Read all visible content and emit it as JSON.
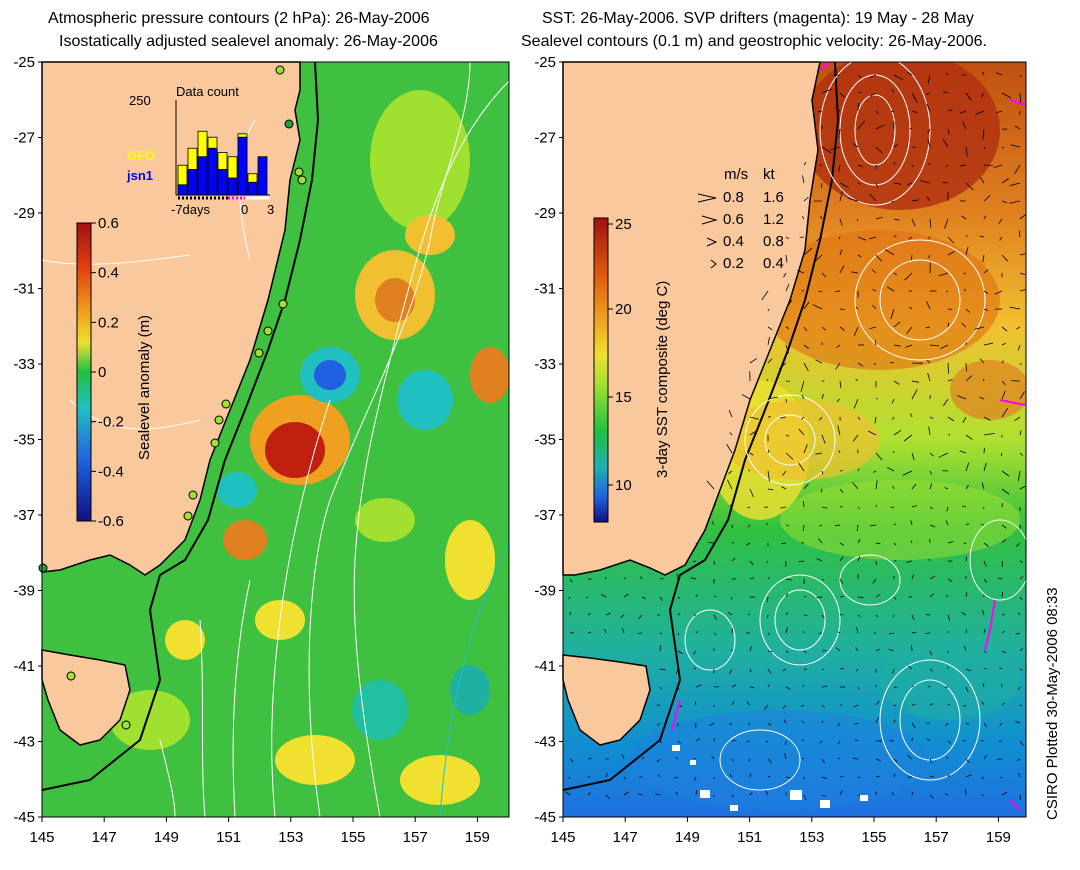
{
  "left_panel": {
    "title_line1": "Atmospheric pressure contours (2 hPa): 26-May-2006",
    "title_line2": "Isostatically adjusted sealevel anomaly: 26-May-2006",
    "colorbar": {
      "label": "Sealevel anomaly (m)",
      "ticks": [
        "0.6",
        "0.4",
        "0.2",
        "0",
        "-0.2",
        "-0.4",
        "-0.6"
      ],
      "colors": [
        "#a01010",
        "#e04010",
        "#f0a020",
        "#f0e030",
        "#a0e030",
        "#20c040",
        "#20c0c0",
        "#2060e0",
        "#101080"
      ]
    },
    "inset": {
      "title": "Data count",
      "ymax": "250",
      "legend_gfo": "GFO",
      "legend_jsn1": "jsn1",
      "xlabel_left": "-7days",
      "xlabel_mid": "0",
      "xlabel_right": "3",
      "gfo_color": "#ffff00",
      "jsn1_color": "#0000ff",
      "bars": [
        {
          "gfo": 0.35,
          "jsn1": 0.12
        },
        {
          "gfo": 0.55,
          "jsn1": 0.3
        },
        {
          "gfo": 0.75,
          "jsn1": 0.45
        },
        {
          "gfo": 0.68,
          "jsn1": 0.55
        },
        {
          "gfo": 0.5,
          "jsn1": 0.3
        },
        {
          "gfo": 0.45,
          "jsn1": 0.2
        },
        {
          "gfo": 0.72,
          "jsn1": 0.68
        },
        {
          "gfo": 0.25,
          "jsn1": 0.15
        },
        {
          "gfo": 0,
          "jsn1": 0.45
        }
      ]
    }
  },
  "right_panel": {
    "title_line1": "SST: 26-May-2006. SVP drifters (magenta): 19 May - 28 May",
    "title_line2": "Sealevel contours (0.1 m) and geostrophic velocity: 26-May-2006.",
    "colorbar": {
      "label": "3-day SST composite (deg C)",
      "ticks": [
        "25",
        "20",
        "15",
        "10"
      ],
      "colors": [
        "#a01010",
        "#e06010",
        "#f0a020",
        "#f0e030",
        "#a0e030",
        "#20c040",
        "#20b0b0",
        "#2060e0",
        "#101080"
      ]
    },
    "velocity_legend": {
      "header_ms": "m/s",
      "header_kt": "kt",
      "rows": [
        {
          "ms": "0.8",
          "kt": "1.6"
        },
        {
          "ms": "0.6",
          "kt": "1.2"
        },
        {
          "ms": "0.4",
          "kt": "0.8"
        },
        {
          "ms": "0.2",
          "kt": "0.4"
        }
      ]
    }
  },
  "axes": {
    "y_ticks": [
      "-25",
      "-27",
      "-29",
      "-31",
      "-33",
      "-35",
      "-37",
      "-39",
      "-41",
      "-43",
      "-45"
    ],
    "x_ticks": [
      "145",
      "147",
      "149",
      "151",
      "153",
      "155",
      "157",
      "159"
    ]
  },
  "credit": "CSIRO Plotted 30-May-2006 08:33",
  "colors": {
    "land": "#f9c89c",
    "ocean_green": "#40c040",
    "coast": "#000000"
  }
}
